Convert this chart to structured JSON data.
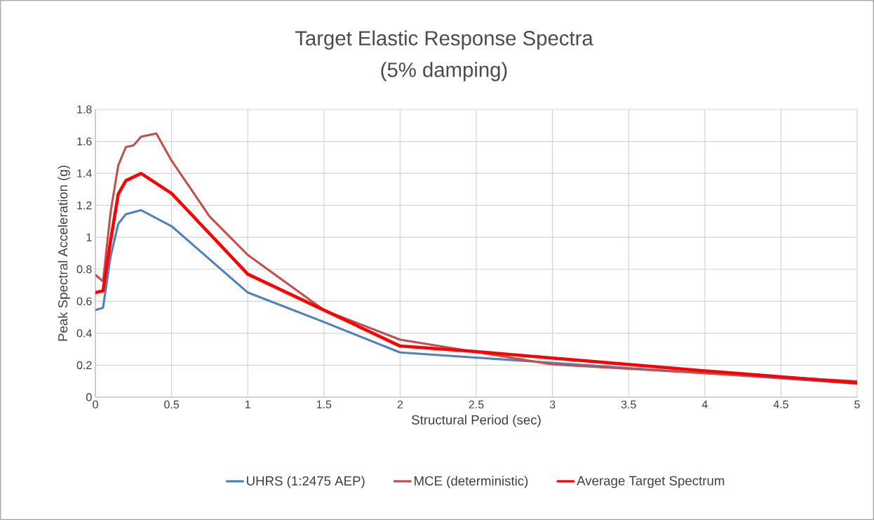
{
  "chart_data": {
    "type": "line",
    "title": "Target Elastic Response Spectra",
    "subtitle": "(5% damping)",
    "xlabel": "Structural Period (sec)",
    "ylabel": "Peak Spectral Acceleration (g)",
    "xlim": [
      0,
      5
    ],
    "ylim": [
      0,
      1.8
    ],
    "xticks": [
      0,
      0.5,
      1,
      1.5,
      2,
      2.5,
      3,
      3.5,
      4,
      4.5,
      5
    ],
    "yticks": [
      0,
      0.2,
      0.4,
      0.6,
      0.8,
      1,
      1.2,
      1.4,
      1.6,
      1.8
    ],
    "grid": true,
    "legend": "bottom",
    "line_style": "solid",
    "series": [
      {
        "name": "UHRS (1:2475 AEP)",
        "color": "#4f81bd",
        "x": [
          0,
          0.05,
          0.1,
          0.15,
          0.2,
          0.3,
          0.5,
          1,
          1.5,
          2,
          3,
          4,
          5
        ],
        "values": [
          0.545,
          0.56,
          0.88,
          1.085,
          1.145,
          1.17,
          1.07,
          0.655,
          0.47,
          0.28,
          null,
          0.15,
          0.085
        ]
      },
      {
        "name": "MCE (deterministic)",
        "color": "#c0504d",
        "x": [
          0,
          0.05,
          0.1,
          0.15,
          0.2,
          0.25,
          0.3,
          0.4,
          0.5,
          0.75,
          1,
          1.5,
          2,
          3,
          4,
          5
        ],
        "values": [
          0.765,
          0.725,
          1.16,
          1.45,
          1.565,
          1.575,
          1.63,
          1.65,
          1.48,
          1.13,
          0.89,
          0.545,
          0.36,
          0.205,
          0.15,
          0.1
        ]
      },
      {
        "name": "Average Target Spectrum",
        "color": "#ff0000",
        "x": [
          0,
          0.05,
          0.1,
          0.15,
          0.2,
          0.3,
          0.5,
          1,
          1.5,
          2,
          2.5,
          3,
          4,
          5
        ],
        "values": [
          0.655,
          0.665,
          0.98,
          1.27,
          1.355,
          1.4,
          1.275,
          0.77,
          0.545,
          0.32,
          0.285,
          0.245,
          0.165,
          0.09
        ]
      }
    ]
  }
}
